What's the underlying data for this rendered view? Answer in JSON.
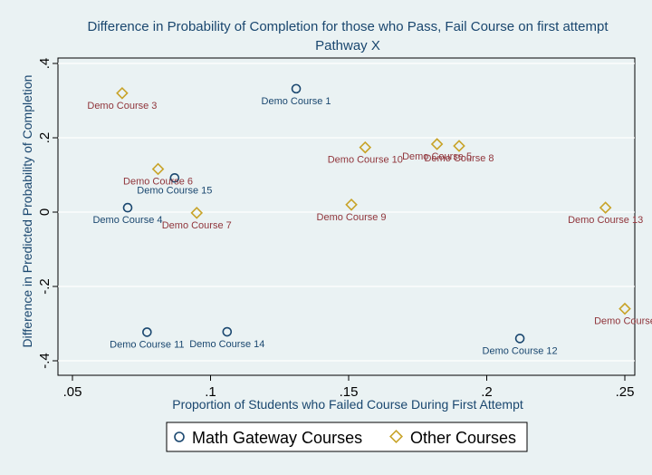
{
  "chart_data": {
    "type": "scatter",
    "title": "Difference in Probability of Completion for those who Pass, Fail Course on first attempt",
    "subtitle": "Pathway X",
    "xlabel": "Proportion of Students who Failed Course During First Attempt",
    "ylabel": "Difference in Predicted Probability of Completion",
    "xlim": [
      0.05,
      0.25
    ],
    "ylim": [
      -0.4,
      0.4
    ],
    "xticks": [
      ".05",
      ".1",
      ".15",
      ".2",
      ".25"
    ],
    "yticks": [
      "-.4",
      "-.2",
      "0",
      ".2",
      ".4"
    ],
    "grid": "horizontal",
    "legend_position": "bottom",
    "series": [
      {
        "name": "Math Gateway Courses",
        "marker": "circle",
        "color": "#1a476f",
        "points": [
          {
            "x": 0.131,
            "y": 0.332,
            "label": "Demo Course 1"
          },
          {
            "x": 0.07,
            "y": 0.012,
            "label": "Demo Course 4"
          },
          {
            "x": 0.087,
            "y": 0.092,
            "label": "Demo Course 15"
          },
          {
            "x": 0.077,
            "y": -0.323,
            "label": "Demo Course 11"
          },
          {
            "x": 0.106,
            "y": -0.322,
            "label": "Demo Course 14"
          },
          {
            "x": 0.212,
            "y": -0.34,
            "label": "Demo Course 12"
          }
        ]
      },
      {
        "name": "Other Courses",
        "marker": "diamond",
        "color": "#c8a328",
        "points": [
          {
            "x": 0.068,
            "y": 0.32,
            "label": "Demo Course 3"
          },
          {
            "x": 0.081,
            "y": 0.116,
            "label": "Demo Course 6"
          },
          {
            "x": 0.095,
            "y": -0.002,
            "label": "Demo Course 7"
          },
          {
            "x": 0.156,
            "y": 0.174,
            "label": "Demo Course 10"
          },
          {
            "x": 0.151,
            "y": 0.02,
            "label": "Demo Course 9"
          },
          {
            "x": 0.182,
            "y": 0.183,
            "label": "Demo Course 5"
          },
          {
            "x": 0.19,
            "y": 0.178,
            "label": "Demo Course 8"
          },
          {
            "x": 0.243,
            "y": 0.012,
            "label": "Demo Course 13"
          },
          {
            "x": 0.25,
            "y": -0.26,
            "label": "Demo Course"
          }
        ]
      }
    ]
  }
}
